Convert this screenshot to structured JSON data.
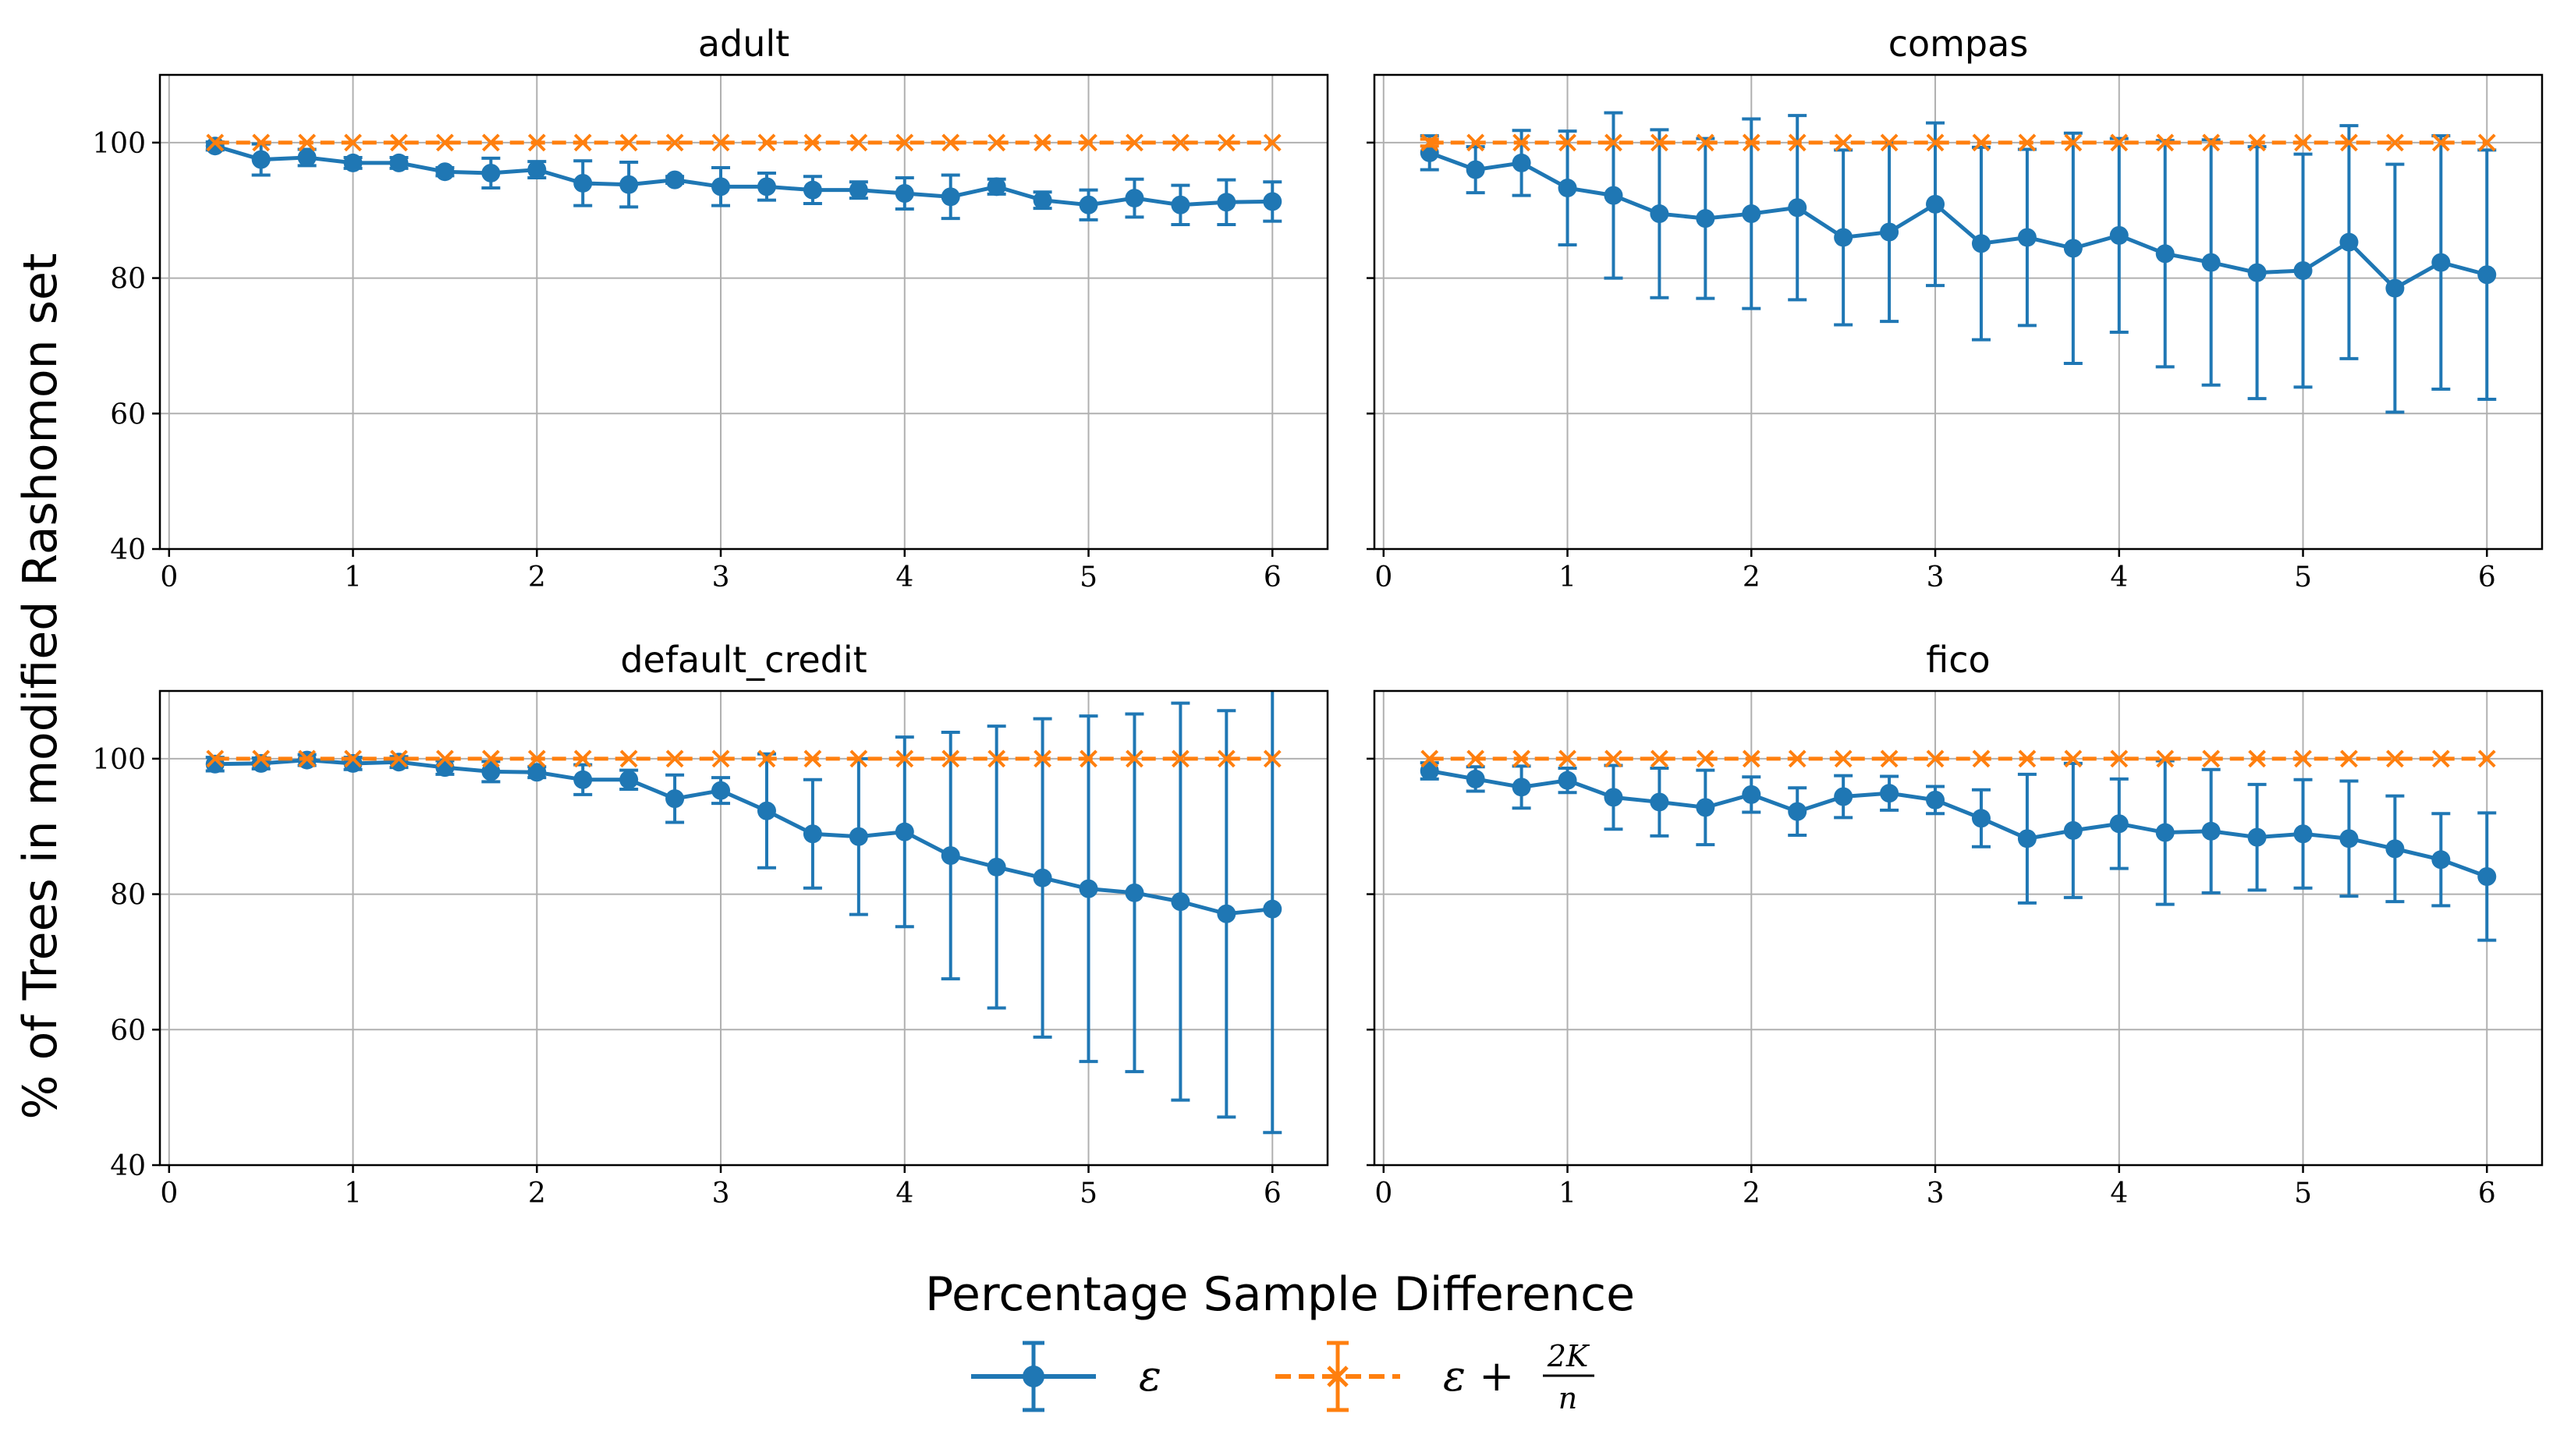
{
  "chart_data": {
    "type": "line",
    "ylabel": "% of Trees in modified Rashomon set",
    "xlabel": "Percentage Sample Difference",
    "xlim": [
      -0.05,
      6.3
    ],
    "ylim": [
      40,
      110
    ],
    "xticks": [
      "0",
      "1",
      "2",
      "3",
      "4",
      "5",
      "6"
    ],
    "yticks": [
      "40",
      "60",
      "80",
      "100"
    ],
    "grid": true,
    "legend_position": "bottom-center",
    "legend": [
      {
        "label": "ε",
        "color": "#1f77b4",
        "style": "solid-circle"
      },
      {
        "label": "ε + 2K/n",
        "label_main": "ε +",
        "frac_num": "2K",
        "frac_den": "n",
        "color": "#ff7f0e",
        "style": "dashed-x"
      }
    ],
    "x": [
      0.25,
      0.5,
      0.75,
      1.0,
      1.25,
      1.5,
      1.75,
      2.0,
      2.25,
      2.5,
      2.75,
      3.0,
      3.25,
      3.5,
      3.75,
      4.0,
      4.25,
      4.5,
      4.75,
      5.0,
      5.25,
      5.5,
      5.75,
      6.0
    ],
    "panels": [
      {
        "title": "adult",
        "series": [
          {
            "name": "ε",
            "values": [
              99.5,
              97.5,
              97.8,
              97.0,
              97.0,
              95.7,
              95.5,
              96.0,
              94.0,
              93.8,
              94.5,
              93.5,
              93.5,
              93.0,
              93.0,
              92.5,
              92.0,
              93.5,
              91.5,
              90.8,
              91.8,
              90.8,
              91.2,
              91.3
            ],
            "errors": [
              0.6,
              2.3,
              1.2,
              0.8,
              0.8,
              0.6,
              2.2,
              1.2,
              3.3,
              3.3,
              0.5,
              2.8,
              2.0,
              2.0,
              1.2,
              2.3,
              3.2,
              1.1,
              1.2,
              2.2,
              2.8,
              2.9,
              3.3,
              2.9
            ]
          },
          {
            "name": "ε + 2K/n",
            "values": [
              100,
              100,
              100,
              100,
              100,
              100,
              100,
              100,
              100,
              100,
              100,
              100,
              100,
              100,
              100,
              100,
              100,
              100,
              100,
              100,
              100,
              100,
              100,
              100
            ],
            "errors": [
              0,
              0,
              0,
              0,
              0,
              0,
              0,
              0,
              0,
              0,
              0,
              0,
              0,
              0,
              0,
              0,
              0,
              0,
              0,
              0,
              0,
              0,
              0,
              0
            ]
          }
        ]
      },
      {
        "title": "compas",
        "series": [
          {
            "name": "ε",
            "values": [
              98.5,
              96.0,
              97.0,
              93.3,
              92.2,
              89.5,
              88.8,
              89.5,
              90.4,
              86.0,
              86.8,
              90.9,
              85.1,
              86.0,
              84.4,
              86.3,
              83.6,
              82.3,
              80.8,
              81.1,
              85.3,
              78.5,
              82.3,
              80.5
            ],
            "errors": [
              2.5,
              3.4,
              4.8,
              8.4,
              12.2,
              12.4,
              11.8,
              14.0,
              13.6,
              12.9,
              13.2,
              12.0,
              14.2,
              13.0,
              17.0,
              14.3,
              16.7,
              18.1,
              18.6,
              17.2,
              17.2,
              18.3,
              18.7,
              18.4
            ]
          },
          {
            "name": "ε + 2K/n",
            "values": [
              100,
              100,
              100,
              100,
              100,
              100,
              100,
              100,
              100,
              100,
              100,
              100,
              100,
              100,
              100,
              100,
              100,
              100,
              100,
              100,
              100,
              100,
              100,
              100
            ],
            "errors": [
              0.5,
              0,
              0,
              0,
              0,
              0,
              0,
              0,
              0,
              0,
              0,
              0,
              0,
              0,
              0,
              0,
              0,
              0,
              0,
              0,
              0,
              0,
              0,
              0
            ]
          }
        ]
      },
      {
        "title": "default_credit",
        "title_display": "default_credit",
        "series": [
          {
            "name": "ε",
            "values": [
              99.2,
              99.3,
              99.8,
              99.3,
              99.5,
              98.7,
              98.1,
              98.0,
              96.9,
              96.9,
              94.1,
              95.3,
              92.3,
              88.9,
              88.5,
              89.2,
              85.7,
              84.0,
              82.4,
              80.8,
              80.2,
              78.9,
              77.1,
              77.8
            ],
            "errors": [
              1.0,
              0.8,
              0.8,
              0.9,
              0.8,
              1.0,
              1.5,
              0.8,
              2.2,
              1.4,
              3.5,
              1.9,
              8.4,
              8.0,
              11.5,
              14.0,
              18.2,
              20.8,
              23.5,
              25.5,
              26.4,
              29.3,
              30.0,
              33.0
            ]
          },
          {
            "name": "ε + 2K/n",
            "values": [
              100,
              100,
              100,
              100,
              100,
              100,
              100,
              100,
              100,
              100,
              100,
              100,
              100,
              100,
              100,
              100,
              100,
              100,
              100,
              100,
              100,
              100,
              100,
              100
            ],
            "errors": [
              0,
              0,
              0,
              0,
              0,
              0,
              0,
              0,
              0,
              0,
              0,
              0,
              0,
              0,
              0,
              0,
              0,
              0,
              0,
              0,
              0,
              0,
              0,
              0
            ]
          }
        ]
      },
      {
        "title": "fico",
        "series": [
          {
            "name": "ε",
            "values": [
              98.2,
              97.0,
              95.8,
              96.8,
              94.3,
              93.6,
              92.8,
              94.7,
              92.2,
              94.4,
              94.9,
              93.9,
              91.2,
              88.2,
              89.4,
              90.4,
              89.1,
              89.3,
              88.4,
              88.9,
              88.2,
              86.7,
              85.1,
              82.6
            ],
            "errors": [
              1.2,
              1.8,
              3.1,
              1.8,
              4.7,
              5.0,
              5.5,
              2.6,
              3.5,
              3.1,
              2.5,
              2.0,
              4.2,
              9.5,
              9.9,
              6.6,
              10.6,
              9.1,
              7.8,
              8.0,
              8.5,
              7.8,
              6.8,
              9.4
            ]
          },
          {
            "name": "ε + 2K/n",
            "values": [
              100,
              100,
              100,
              100,
              100,
              100,
              100,
              100,
              100,
              100,
              100,
              100,
              100,
              100,
              100,
              100,
              100,
              100,
              100,
              100,
              100,
              100,
              100,
              100
            ],
            "errors": [
              0,
              0,
              0,
              0,
              0,
              0,
              0,
              0,
              0,
              0,
              0,
              0,
              0,
              0,
              0,
              0,
              0,
              0,
              0,
              0,
              0,
              0,
              0,
              0
            ]
          }
        ]
      }
    ]
  }
}
